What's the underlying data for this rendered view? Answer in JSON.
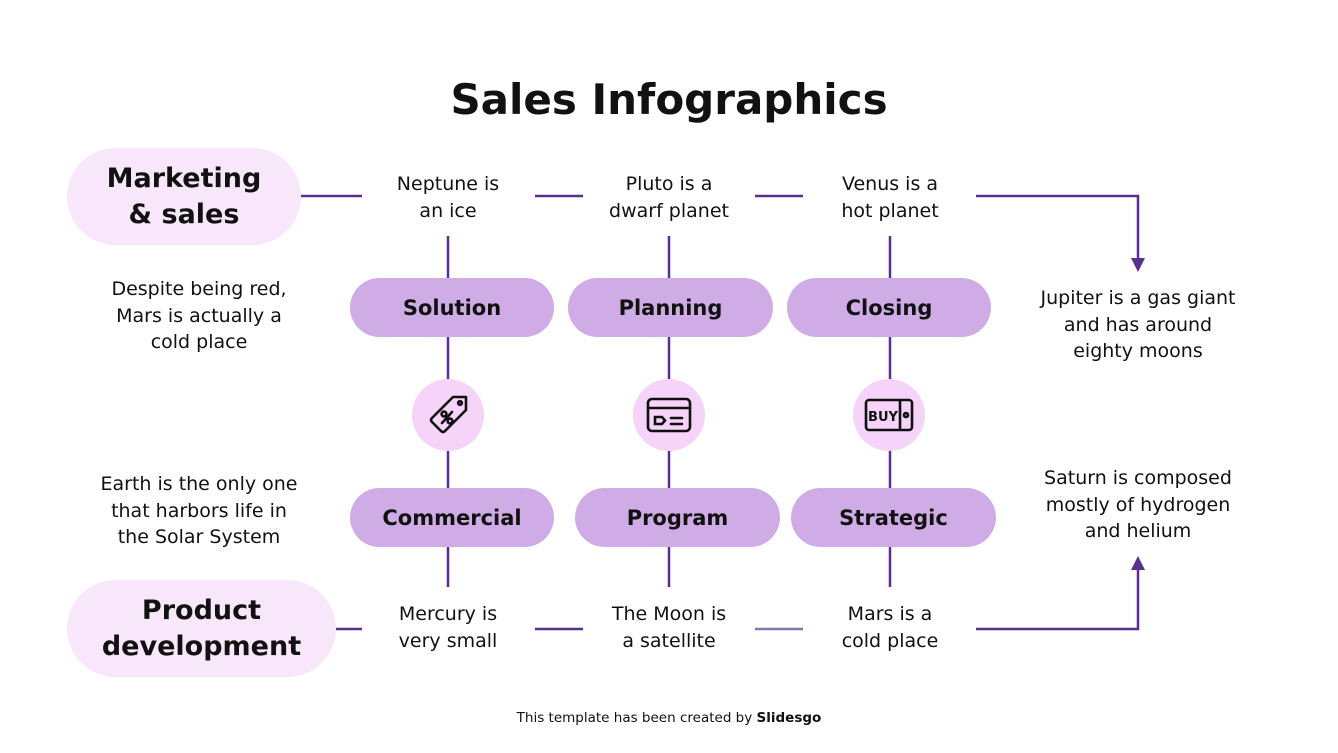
{
  "title": "Sales Infographics",
  "colors": {
    "line": "#5b2e91",
    "pill": "#d0ace6",
    "header_pill": "#f8e6fa",
    "icon_circle": "#f6d3f8"
  },
  "headers": {
    "top": "Marketing\n& sales",
    "bottom": "Product\ndevelopment"
  },
  "top_texts": [
    "Neptune is\nan ice",
    "Pluto is a\ndwarf planet",
    "Venus is a\nhot planet"
  ],
  "bottom_texts": [
    "Mercury is\nvery small",
    "The Moon is\na satellite",
    "Mars is a\ncold place"
  ],
  "top_pills": [
    "Solution",
    "Planning",
    "Closing"
  ],
  "bottom_pills": [
    "Commercial",
    "Program",
    "Strategic"
  ],
  "icons": [
    "discount-tag-icon",
    "credit-card-icon",
    "buy-button-icon"
  ],
  "buy_icon_label": "BUY",
  "left_texts": [
    "Despite being red,\nMars is actually a\ncold place",
    "Earth is the only one\nthat harbors life in\nthe Solar System"
  ],
  "right_texts": [
    "Jupiter is a gas giant\nand has around\neighty moons",
    "Saturn is composed\nmostly of hydrogen\nand helium"
  ],
  "footer": {
    "prefix": "This template has been created by ",
    "brand": "Slidesgo"
  }
}
